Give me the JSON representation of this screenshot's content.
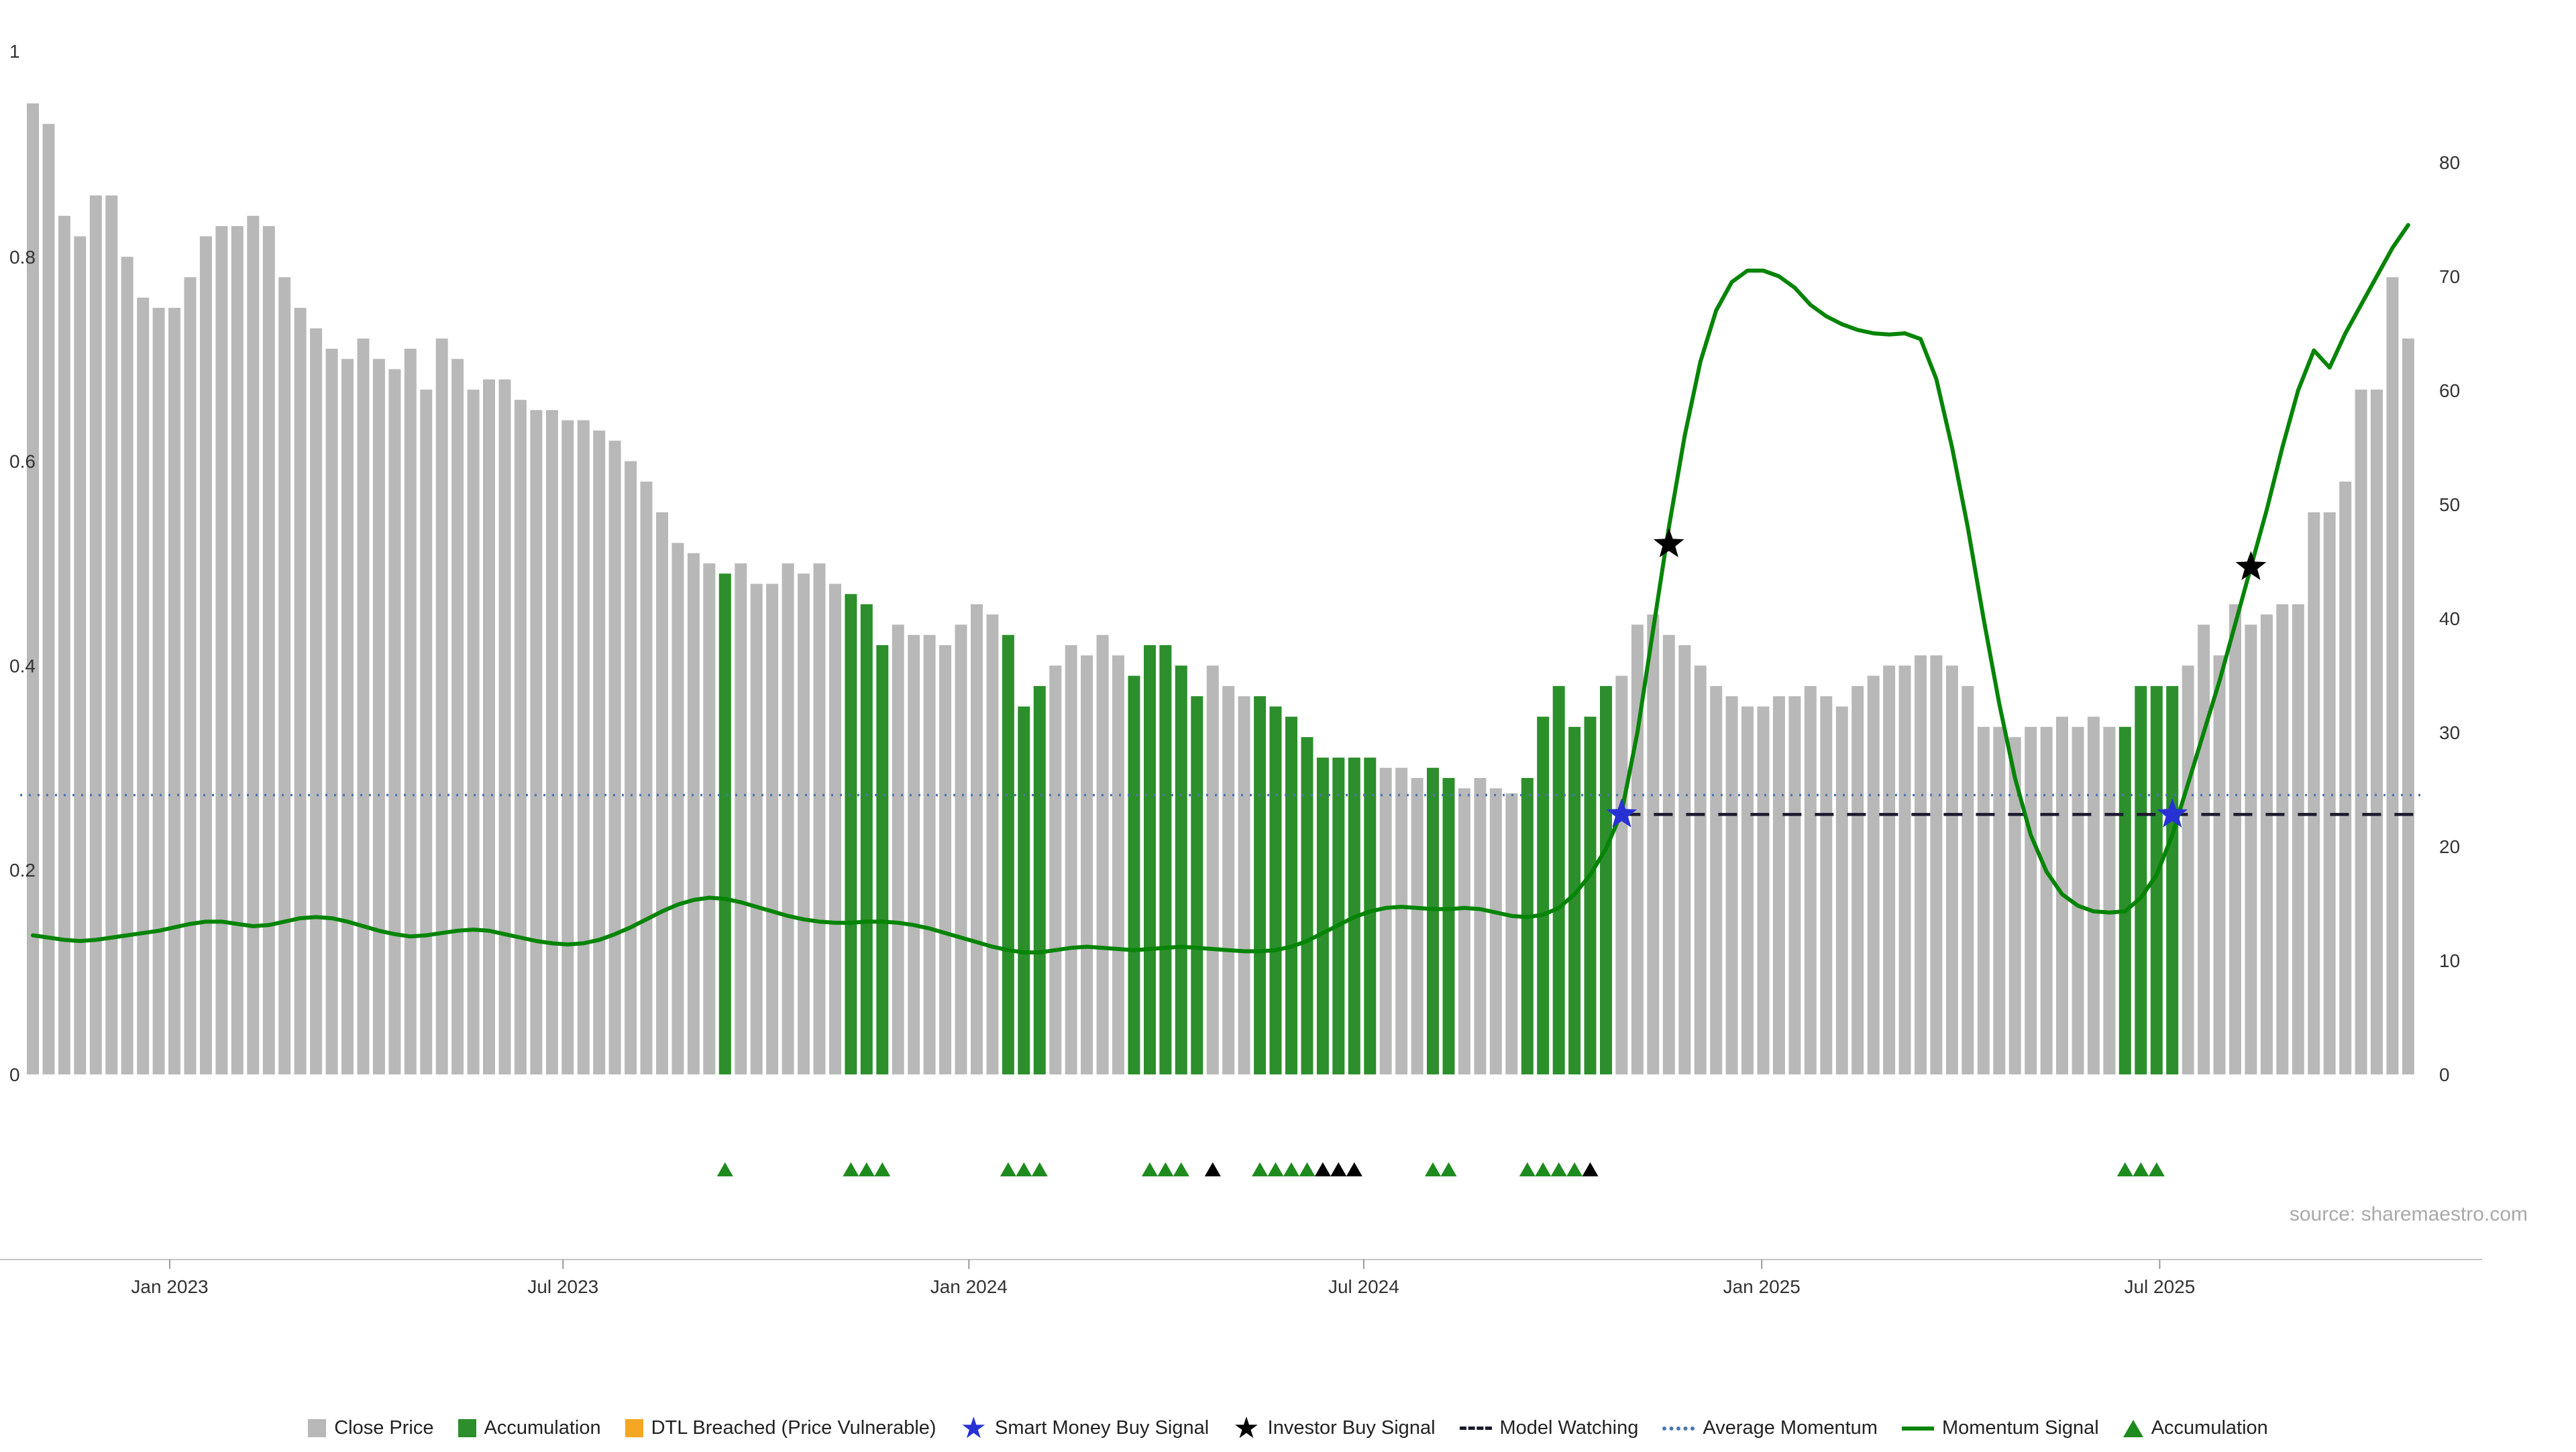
{
  "source_note": "source: sharemaestro.com",
  "colors": {
    "background": "#ffffff",
    "bar_gray": "#b8b8b8",
    "bar_green": "#2c8f2c",
    "momentum_line": "#068406",
    "avg_momentum": "#4a74b4",
    "model_watching": "#1a1a2e",
    "star_blue": "#2832d4",
    "star_black": "#000000",
    "triangle_green": "#1e8b1e",
    "triangle_black": "#000000",
    "dtl_orange": "#f5a623",
    "axis_text": "#333333",
    "source_text": "#a9a9a9"
  },
  "legend": [
    {
      "label": "Close Price",
      "swatch": "square",
      "color": "#b8b8b8"
    },
    {
      "label": "Accumulation",
      "swatch": "square",
      "color": "#2c8f2c"
    },
    {
      "label": "DTL Breached (Price Vulnerable)",
      "swatch": "square",
      "color": "#f5a623"
    },
    {
      "label": "Smart Money Buy Signal",
      "swatch": "star",
      "color": "#2832d4"
    },
    {
      "label": "Investor Buy Signal",
      "swatch": "star",
      "color": "#000000"
    },
    {
      "label": "Model Watching",
      "swatch": "dashed-line",
      "color": "#1a1a2e"
    },
    {
      "label": "Average Momentum",
      "swatch": "dotted-line",
      "color": "#4a74b4"
    },
    {
      "label": "Momentum Signal",
      "swatch": "solid-line",
      "color": "#068406"
    },
    {
      "label": "Accumulation",
      "swatch": "triangle",
      "color": "#1e8b1e"
    }
  ],
  "chart_data": {
    "type": "bar",
    "overlay_type": "line",
    "title": "",
    "x_frequency": "weekly",
    "grid": false,
    "legend_position": "bottom-center",
    "x_tick_labels": [
      "Jan 2023",
      "Jul 2023",
      "Jan 2024",
      "Jul 2024",
      "Jan 2025",
      "Jul 2025"
    ],
    "x_tick_positions": [
      8.7,
      33.7,
      59.5,
      84.6,
      109.9,
      135.2
    ],
    "left_axis": {
      "tick_labels": [
        "0",
        "0.2",
        "0.4",
        "0.6",
        "0.8",
        "1"
      ],
      "tick_values": [
        0,
        0.2,
        0.4,
        0.6,
        0.8,
        1
      ],
      "range": [
        0,
        1.05
      ]
    },
    "right_axis": {
      "tick_labels": [
        "0",
        "10",
        "20",
        "30",
        "40",
        "50",
        "60",
        "70",
        "80"
      ],
      "tick_values": [
        0,
        10,
        20,
        30,
        40,
        50,
        60,
        70,
        80
      ],
      "range": [
        0,
        91
      ]
    },
    "series": [
      {
        "name": "Close Price",
        "type": "bar",
        "axis": "left",
        "values": [
          0.95,
          0.93,
          0.84,
          0.82,
          0.86,
          0.86,
          0.8,
          0.76,
          0.75,
          0.75,
          0.78,
          0.82,
          0.83,
          0.83,
          0.84,
          0.83,
          0.78,
          0.75,
          0.73,
          0.71,
          0.7,
          0.72,
          0.7,
          0.69,
          0.71,
          0.67,
          0.72,
          0.7,
          0.67,
          0.68,
          0.68,
          0.66,
          0.65,
          0.65,
          0.64,
          0.64,
          0.63,
          0.62,
          0.6,
          0.58,
          0.55,
          0.52,
          0.51,
          0.5,
          0.49,
          0.5,
          0.48,
          0.48,
          0.5,
          0.49,
          0.5,
          0.48,
          0.47,
          0.46,
          0.42,
          0.44,
          0.43,
          0.43,
          0.42,
          0.44,
          0.46,
          0.45,
          0.43,
          0.36,
          0.38,
          0.4,
          0.42,
          0.41,
          0.43,
          0.41,
          0.39,
          0.42,
          0.42,
          0.4,
          0.37,
          0.4,
          0.38,
          0.37,
          0.37,
          0.36,
          0.35,
          0.33,
          0.31,
          0.31,
          0.31,
          0.31,
          0.3,
          0.3,
          0.29,
          0.3,
          0.29,
          0.28,
          0.29,
          0.28,
          0.275,
          0.29,
          0.35,
          0.38,
          0.34,
          0.35,
          0.38,
          0.39,
          0.44,
          0.45,
          0.43,
          0.42,
          0.4,
          0.38,
          0.37,
          0.36,
          0.36,
          0.37,
          0.37,
          0.38,
          0.37,
          0.36,
          0.38,
          0.39,
          0.4,
          0.4,
          0.41,
          0.41,
          0.4,
          0.38,
          0.34,
          0.34,
          0.33,
          0.34,
          0.34,
          0.35,
          0.34,
          0.35,
          0.34,
          0.34,
          0.38,
          0.38,
          0.38,
          0.4,
          0.44,
          0.41,
          0.46,
          0.44,
          0.45,
          0.46,
          0.46,
          0.55,
          0.55,
          0.58,
          0.67,
          0.67,
          0.78,
          0.72
        ]
      },
      {
        "name": "Momentum Signal",
        "type": "line",
        "axis": "right",
        "values": [
          12.2,
          12.0,
          11.8,
          11.7,
          11.8,
          12.0,
          12.2,
          12.4,
          12.6,
          12.9,
          13.2,
          13.4,
          13.4,
          13.2,
          13.0,
          13.1,
          13.4,
          13.7,
          13.8,
          13.7,
          13.4,
          13.0,
          12.6,
          12.3,
          12.1,
          12.2,
          12.4,
          12.6,
          12.7,
          12.6,
          12.3,
          12.0,
          11.7,
          11.5,
          11.4,
          11.5,
          11.8,
          12.3,
          12.9,
          13.6,
          14.3,
          14.9,
          15.3,
          15.5,
          15.4,
          15.1,
          14.7,
          14.3,
          13.9,
          13.6,
          13.4,
          13.3,
          13.3,
          13.4,
          13.4,
          13.3,
          13.1,
          12.8,
          12.4,
          12.0,
          11.6,
          11.2,
          10.9,
          10.7,
          10.7,
          10.9,
          11.1,
          11.2,
          11.1,
          11.0,
          10.9,
          11.0,
          11.1,
          11.2,
          11.1,
          11.0,
          10.9,
          10.8,
          10.8,
          10.9,
          11.2,
          11.7,
          12.4,
          13.1,
          13.8,
          14.3,
          14.6,
          14.7,
          14.6,
          14.5,
          14.5,
          14.6,
          14.5,
          14.2,
          13.9,
          13.8,
          14.0,
          14.6,
          15.8,
          17.5,
          19.8,
          23.0,
          30.0,
          39.0,
          48.0,
          56.0,
          62.5,
          67.0,
          69.5,
          70.5,
          70.5,
          70.0,
          69.0,
          67.5,
          66.5,
          65.8,
          65.3,
          65.0,
          64.9,
          65.0,
          64.5,
          61.0,
          55.0,
          48.0,
          40.0,
          32.5,
          26.0,
          21.0,
          17.8,
          15.8,
          14.8,
          14.3,
          14.2,
          14.3,
          15.5,
          17.5,
          21.0,
          25.5,
          30.0,
          34.5,
          39.5,
          44.5,
          49.5,
          55.0,
          60.0,
          63.5,
          62.0,
          65.0,
          67.5,
          70.0,
          72.5,
          74.5
        ]
      }
    ],
    "accumulation_bar_indices": [
      44,
      52,
      53,
      54,
      62,
      63,
      64,
      70,
      71,
      72,
      73,
      74,
      78,
      79,
      80,
      81,
      82,
      83,
      84,
      85,
      89,
      90,
      95,
      96,
      97,
      98,
      99,
      100,
      133,
      134,
      135,
      136
    ],
    "average_momentum": 24.5,
    "model_watching": {
      "value": 22.8,
      "start_index": 101
    },
    "stars": [
      {
        "index": 101,
        "value": 22.8,
        "type": "smart_money_buy",
        "color": "blue"
      },
      {
        "index": 104,
        "value": 46.5,
        "type": "investor_buy",
        "color": "black"
      },
      {
        "index": 136,
        "value": 22.8,
        "type": "smart_money_buy",
        "color": "blue"
      },
      {
        "index": 141,
        "value": 44.5,
        "type": "investor_buy",
        "color": "black"
      }
    ],
    "triangle_markers": {
      "green": [
        44,
        52,
        53,
        54,
        62,
        63,
        64,
        71,
        72,
        73,
        78,
        79,
        80,
        81,
        89,
        90,
        95,
        96,
        97,
        98,
        133,
        134,
        135
      ],
      "black": [
        75,
        82,
        83,
        84,
        99
      ]
    }
  }
}
